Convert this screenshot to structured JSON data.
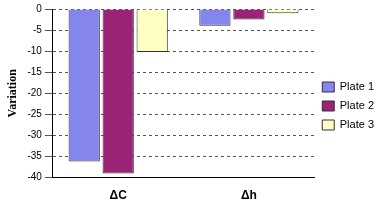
{
  "chart_data": {
    "type": "bar",
    "y_label": "Variation",
    "categories": [
      "ΔC",
      "Δh"
    ],
    "series": [
      {
        "name": "Plate 1",
        "color": "#8585ee",
        "values": [
          -36.2,
          -4
        ]
      },
      {
        "name": "Plate 2",
        "color": "#9a2378",
        "values": [
          -39,
          -2.5
        ]
      },
      {
        "name": "Plate 3",
        "color": "#ffffc4",
        "values": [
          -10.2,
          -1
        ]
      }
    ],
    "ylim": [
      -40,
      0
    ],
    "yticks": [
      -40,
      -35,
      -30,
      -25,
      -20,
      -15,
      -10,
      -5,
      0
    ],
    "grid": true,
    "legend": "right"
  }
}
